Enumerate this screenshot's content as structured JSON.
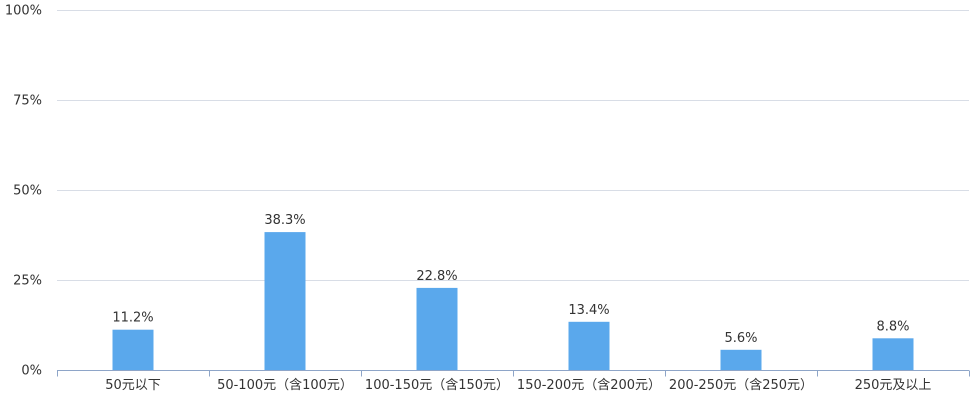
{
  "chart_data": {
    "type": "bar",
    "title": "",
    "xlabel": "",
    "ylabel": "",
    "ylim": [
      0,
      100
    ],
    "yticks": [
      0,
      25,
      50,
      75,
      100
    ],
    "ytick_labels": [
      "0%",
      "25%",
      "50%",
      "75%",
      "100%"
    ],
    "grid": true,
    "legend": "none",
    "categories": [
      "50元以下",
      "50-100元（含100元）",
      "100-150元（含150元）",
      "150-200元（含200元）",
      "200-250元（含250元）",
      "250元及以上"
    ],
    "values": [
      11.2,
      38.3,
      22.8,
      13.4,
      5.6,
      8.8
    ],
    "value_labels": [
      "11.2%",
      "38.3%",
      "22.8%",
      "13.4%",
      "5.6%",
      "8.8%"
    ],
    "bar_color": "#5aa8ec"
  }
}
